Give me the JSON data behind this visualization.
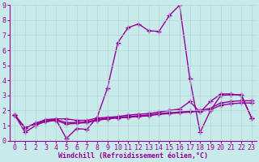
{
  "background_color": "#c8eaea",
  "plot_bg_color": "#c8eaea",
  "line_color": "#990099",
  "marker": "+",
  "marker_size": 4,
  "line_width": 1.0,
  "xlabel": "Windchill (Refroidissement éolien,°C)",
  "xlabel_fontsize": 6,
  "tick_fontsize": 6,
  "xlim": [
    -0.5,
    23.5
  ],
  "ylim": [
    0,
    9
  ],
  "xticks": [
    0,
    1,
    2,
    3,
    4,
    5,
    6,
    7,
    8,
    9,
    10,
    11,
    12,
    13,
    14,
    15,
    16,
    17,
    18,
    19,
    20,
    21,
    22,
    23
  ],
  "yticks": [
    0,
    1,
    2,
    3,
    4,
    5,
    6,
    7,
    8,
    9
  ],
  "series": [
    [
      1.7,
      0.55,
      1.0,
      1.3,
      1.4,
      0.15,
      0.8,
      0.75,
      1.55,
      3.5,
      6.5,
      7.5,
      7.75,
      7.3,
      7.25,
      8.3,
      9.0,
      4.1,
      0.55,
      2.0,
      3.0,
      3.05,
      3.05,
      1.5
    ],
    [
      1.7,
      0.85,
      1.15,
      1.4,
      1.45,
      1.45,
      1.35,
      1.35,
      1.5,
      1.55,
      1.6,
      1.7,
      1.75,
      1.8,
      1.9,
      2.0,
      2.1,
      2.6,
      1.9,
      2.6,
      3.1,
      3.1,
      3.0,
      1.5
    ],
    [
      1.7,
      0.85,
      1.15,
      1.35,
      1.4,
      1.2,
      1.2,
      1.25,
      1.4,
      1.5,
      1.55,
      1.6,
      1.65,
      1.7,
      1.8,
      1.85,
      1.9,
      1.95,
      2.0,
      2.15,
      2.5,
      2.6,
      2.65,
      2.65
    ],
    [
      1.7,
      0.85,
      1.1,
      1.25,
      1.35,
      1.1,
      1.15,
      1.2,
      1.35,
      1.45,
      1.5,
      1.55,
      1.6,
      1.65,
      1.75,
      1.8,
      1.85,
      1.9,
      1.95,
      2.05,
      2.35,
      2.45,
      2.5,
      2.5
    ]
  ]
}
